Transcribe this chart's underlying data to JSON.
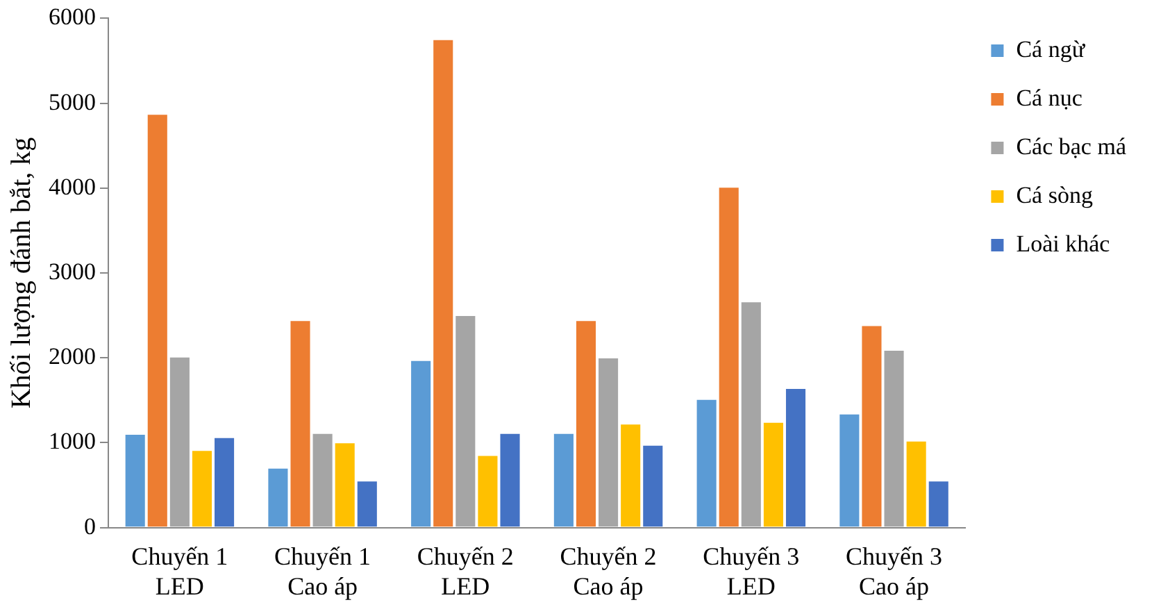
{
  "chart_data": {
    "type": "bar",
    "ylabel": "Khối lượng đánh bắt, kg",
    "categories": [
      "Chuyến 1\nLED",
      "Chuyến 1\nCao áp",
      "Chuyến 2\nLED",
      "Chuyến 2\nCao áp",
      "Chuyến 3\nLED",
      "Chuyến 3\nCao áp"
    ],
    "series": [
      {
        "name": "Cá ngừ",
        "color": "#5b9bd5",
        "values": [
          1110,
          710,
          1980,
          1120,
          1520,
          1350
        ]
      },
      {
        "name": "Cá nục",
        "color": "#ed7d31",
        "values": [
          4880,
          2450,
          5760,
          2450,
          4020,
          2390
        ]
      },
      {
        "name": "Các bạc má",
        "color": "#a5a5a5",
        "values": [
          2020,
          1120,
          2510,
          2010,
          2670,
          2100
        ]
      },
      {
        "name": "Cá sòng",
        "color": "#ffc000",
        "values": [
          920,
          1010,
          860,
          1230,
          1250,
          1030
        ]
      },
      {
        "name": "Loài khác",
        "color": "#4472c4",
        "values": [
          1070,
          560,
          1120,
          980,
          1650,
          560
        ]
      }
    ],
    "ylim": [
      0,
      6000
    ],
    "yticks": [
      0,
      1000,
      2000,
      3000,
      4000,
      5000,
      6000
    ],
    "grid": false,
    "legend": "right"
  }
}
